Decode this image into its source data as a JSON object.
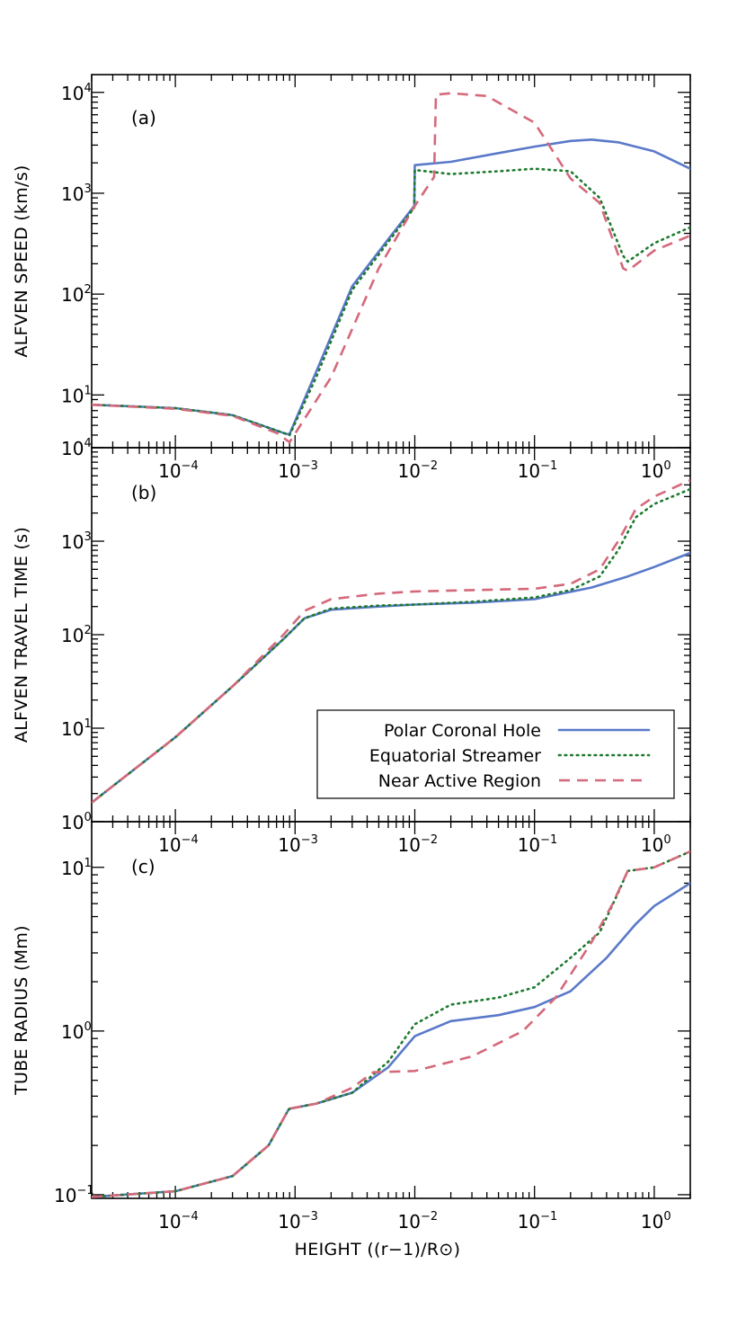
{
  "chart_data": [
    {
      "type": "line",
      "panel_label": "(a)",
      "ylabel": "ALFVEN SPEED (km/s)",
      "xlabel": "",
      "xscale": "log",
      "yscale": "log",
      "xlim": [
        2e-05,
        2.0
      ],
      "ylim": [
        3.0,
        15000
      ],
      "x_tick_labels": [
        "10^-4",
        "10^-3",
        "10^-2",
        "10^-1",
        "10^0"
      ],
      "y_tick_labels": [
        "10^1",
        "10^2",
        "10^3",
        "10^4"
      ],
      "grid": false,
      "series": [
        {
          "name": "Polar Coronal Hole",
          "color": "#5a79c8",
          "dash": "solid",
          "x": [
            2e-05,
            0.0001,
            0.0003,
            0.00085,
            0.0009,
            0.0015,
            0.003,
            0.006,
            0.0099,
            0.01,
            0.02,
            0.05,
            0.1,
            0.2,
            0.3,
            0.5,
            1.0,
            2.0
          ],
          "y": [
            8,
            7.4,
            6.3,
            4.1,
            4.1,
            17,
            120,
            350,
            750,
            1900,
            2050,
            2500,
            2900,
            3300,
            3400,
            3200,
            2600,
            1750
          ]
        },
        {
          "name": "Equatorial Streamer",
          "color": "#1e7a2e",
          "dash": "dotted",
          "x": [
            2e-05,
            0.0001,
            0.0003,
            0.00085,
            0.0009,
            0.0015,
            0.003,
            0.006,
            0.0099,
            0.01,
            0.02,
            0.05,
            0.1,
            0.2,
            0.35,
            0.55,
            0.6,
            1.0,
            2.0
          ],
          "y": [
            8,
            7.4,
            6.3,
            4.1,
            4.0,
            15,
            110,
            330,
            720,
            1700,
            1550,
            1650,
            1750,
            1650,
            900,
            240,
            210,
            320,
            460
          ]
        },
        {
          "name": "Near Active Region",
          "color": "#d4697b",
          "dash": "dashed",
          "x": [
            2e-05,
            0.0001,
            0.0003,
            0.0007,
            0.0009,
            0.002,
            0.005,
            0.01,
            0.0145,
            0.015,
            0.02,
            0.04,
            0.1,
            0.2,
            0.35,
            0.55,
            0.6,
            1.0,
            2.0
          ],
          "y": [
            8,
            7.3,
            6.2,
            4.2,
            3.4,
            15,
            180,
            750,
            1450,
            9500,
            9800,
            9200,
            5000,
            1400,
            800,
            180,
            170,
            270,
            380
          ]
        }
      ]
    },
    {
      "type": "line",
      "panel_label": "(b)",
      "ylabel": "ALFVEN TRAVEL TIME (s)",
      "xlabel": "",
      "xscale": "log",
      "yscale": "log",
      "xlim": [
        2e-05,
        2.0
      ],
      "ylim": [
        1.0,
        10000
      ],
      "x_tick_labels": [
        "10^-4",
        "10^-3",
        "10^-2",
        "10^-1",
        "10^0"
      ],
      "y_tick_labels": [
        "10^0",
        "10^1",
        "10^2",
        "10^3",
        "10^4"
      ],
      "grid": false,
      "legend": {
        "placement": "lower-right",
        "entries": [
          "Polar Coronal Hole",
          "Equatorial Streamer",
          "Near Active Region"
        ]
      },
      "series": [
        {
          "name": "Polar Coronal Hole",
          "color": "#5a79c8",
          "dash": "solid",
          "x": [
            2e-05,
            0.0001,
            0.0003,
            0.0008,
            0.0012,
            0.002,
            0.005,
            0.01,
            0.03,
            0.1,
            0.3,
            0.6,
            1.0,
            2.0
          ],
          "y": [
            1.6,
            8,
            28,
            90,
            150,
            185,
            200,
            210,
            220,
            240,
            320,
            420,
            530,
            750
          ]
        },
        {
          "name": "Equatorial Streamer",
          "color": "#1e7a2e",
          "dash": "dotted",
          "x": [
            2e-05,
            0.0001,
            0.0003,
            0.0008,
            0.0012,
            0.002,
            0.005,
            0.01,
            0.03,
            0.1,
            0.2,
            0.35,
            0.5,
            0.7,
            1.0,
            2.0
          ],
          "y": [
            1.6,
            8,
            28,
            90,
            150,
            190,
            205,
            210,
            225,
            250,
            300,
            420,
            800,
            1800,
            2500,
            3600
          ]
        },
        {
          "name": "Near Active Region",
          "color": "#d4697b",
          "dash": "dashed",
          "x": [
            2e-05,
            0.0001,
            0.0003,
            0.0008,
            0.0012,
            0.002,
            0.005,
            0.01,
            0.03,
            0.1,
            0.2,
            0.35,
            0.5,
            0.7,
            1.0,
            2.0
          ],
          "y": [
            1.6,
            8,
            28,
            100,
            180,
            240,
            275,
            290,
            300,
            310,
            350,
            500,
            1000,
            2200,
            3000,
            4500
          ]
        }
      ]
    },
    {
      "type": "line",
      "panel_label": "(c)",
      "ylabel": "TUBE RADIUS (Mm)",
      "xlabel": "HEIGHT ((r−1)/R⊙)",
      "xscale": "log",
      "yscale": "log",
      "xlim": [
        2e-05,
        2.0
      ],
      "ylim": [
        0.095,
        19
      ],
      "x_tick_labels": [
        "10^-4",
        "10^-3",
        "10^-2",
        "10^-1",
        "10^0"
      ],
      "y_tick_labels": [
        "10^-1",
        "10^0",
        "10^1"
      ],
      "grid": false,
      "series": [
        {
          "name": "Polar Coronal Hole",
          "color": "#5a79c8",
          "dash": "solid",
          "x": [
            2e-05,
            0.0001,
            0.0003,
            0.0006,
            0.00088,
            0.0009,
            0.0015,
            0.003,
            0.006,
            0.01,
            0.02,
            0.05,
            0.1,
            0.2,
            0.4,
            0.7,
            1.0,
            2.0
          ],
          "y": [
            0.097,
            0.105,
            0.13,
            0.2,
            0.33,
            0.335,
            0.36,
            0.42,
            0.6,
            0.93,
            1.15,
            1.25,
            1.4,
            1.75,
            2.8,
            4.5,
            5.8,
            8.0
          ]
        },
        {
          "name": "Equatorial Streamer",
          "color": "#1e7a2e",
          "dash": "dotted",
          "x": [
            2e-05,
            0.0001,
            0.0003,
            0.0006,
            0.00088,
            0.0009,
            0.0015,
            0.003,
            0.006,
            0.01,
            0.02,
            0.05,
            0.1,
            0.2,
            0.35,
            0.5,
            0.6,
            1.0,
            2.0
          ],
          "y": [
            0.097,
            0.105,
            0.13,
            0.2,
            0.33,
            0.335,
            0.36,
            0.42,
            0.65,
            1.1,
            1.45,
            1.6,
            1.85,
            2.8,
            4.0,
            7.0,
            9.5,
            10.0,
            12.5
          ]
        },
        {
          "name": "Near Active Region",
          "color": "#d4697b",
          "dash": "dashed",
          "x": [
            2e-05,
            0.0001,
            0.0003,
            0.0006,
            0.00088,
            0.0009,
            0.0015,
            0.003,
            0.0045,
            0.01,
            0.03,
            0.08,
            0.15,
            0.3,
            0.45,
            0.6,
            1.0,
            2.0
          ],
          "y": [
            0.097,
            0.105,
            0.13,
            0.2,
            0.33,
            0.335,
            0.36,
            0.45,
            0.56,
            0.57,
            0.7,
            1.0,
            1.6,
            3.5,
            6.0,
            9.5,
            10.0,
            12.5
          ]
        }
      ]
    }
  ]
}
